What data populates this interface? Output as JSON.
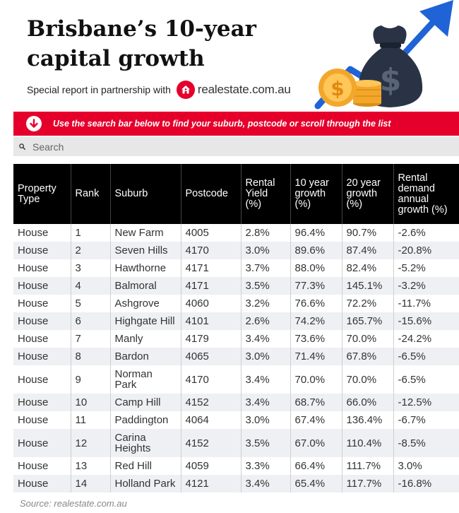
{
  "header": {
    "title": "Brisbane’s 10-year capital growth",
    "subtitle": "Special report in partnership with",
    "partner_logo_text": "realestate.com.au"
  },
  "banner": {
    "text": "Use the search bar below to find your suburb, postcode or scroll through the list"
  },
  "search": {
    "placeholder": "Search"
  },
  "table": {
    "columns": [
      "Property Type",
      "Rank",
      "Suburb",
      "Postcode",
      "Rental Yield (%)",
      "10 year growth (%)",
      "20 year growth (%)",
      "Rental demand annual growth (%)"
    ],
    "rows": [
      [
        "House",
        "1",
        "New Farm",
        "4005",
        "2.8%",
        "96.4%",
        "90.7%",
        "-2.6%"
      ],
      [
        "House",
        "2",
        "Seven Hills",
        "4170",
        "3.0%",
        "89.6%",
        "87.4%",
        "-20.8%"
      ],
      [
        "House",
        "3",
        "Hawthorne",
        "4171",
        "3.7%",
        "88.0%",
        "82.4%",
        "-5.2%"
      ],
      [
        "House",
        "4",
        "Balmoral",
        "4171",
        "3.5%",
        "77.3%",
        "145.1%",
        "-3.2%"
      ],
      [
        "House",
        "5",
        "Ashgrove",
        "4060",
        "3.2%",
        "76.6%",
        "72.2%",
        "-11.7%"
      ],
      [
        "House",
        "6",
        "Highgate Hill",
        "4101",
        "2.6%",
        "74.2%",
        "165.7%",
        "-15.6%"
      ],
      [
        "House",
        "7",
        "Manly",
        "4179",
        "3.4%",
        "73.6%",
        "70.0%",
        "-24.2%"
      ],
      [
        "House",
        "8",
        "Bardon",
        "4065",
        "3.0%",
        "71.4%",
        "67.8%",
        "-6.5%"
      ],
      [
        "House",
        "9",
        "Norman Park",
        "4170",
        "3.4%",
        "70.0%",
        "70.0%",
        "-6.5%"
      ],
      [
        "House",
        "10",
        "Camp Hill",
        "4152",
        "3.4%",
        "68.7%",
        "66.0%",
        "-12.5%"
      ],
      [
        "House",
        "11",
        "Paddington",
        "4064",
        "3.0%",
        "67.4%",
        "136.4%",
        "-6.7%"
      ],
      [
        "House",
        "12",
        "Carina Heights",
        "4152",
        "3.5%",
        "67.0%",
        "110.4%",
        "-8.5%"
      ],
      [
        "House",
        "13",
        "Red Hill",
        "4059",
        "3.3%",
        "66.4%",
        "111.7%",
        "3.0%"
      ],
      [
        "House",
        "14",
        "Holland Park",
        "4121",
        "3.4%",
        "65.4%",
        "117.7%",
        "-16.8%"
      ]
    ]
  },
  "footer": {
    "source": "Source: realestate.com.au"
  },
  "colors": {
    "accent_red": "#e4002b",
    "header_black": "#000000",
    "row_alt": "#eef0f3",
    "arrow_blue": "#1f63d6"
  },
  "icons": {
    "banner": "arrow-down-circle-icon",
    "search": "search-icon",
    "partner": "house-icon"
  }
}
